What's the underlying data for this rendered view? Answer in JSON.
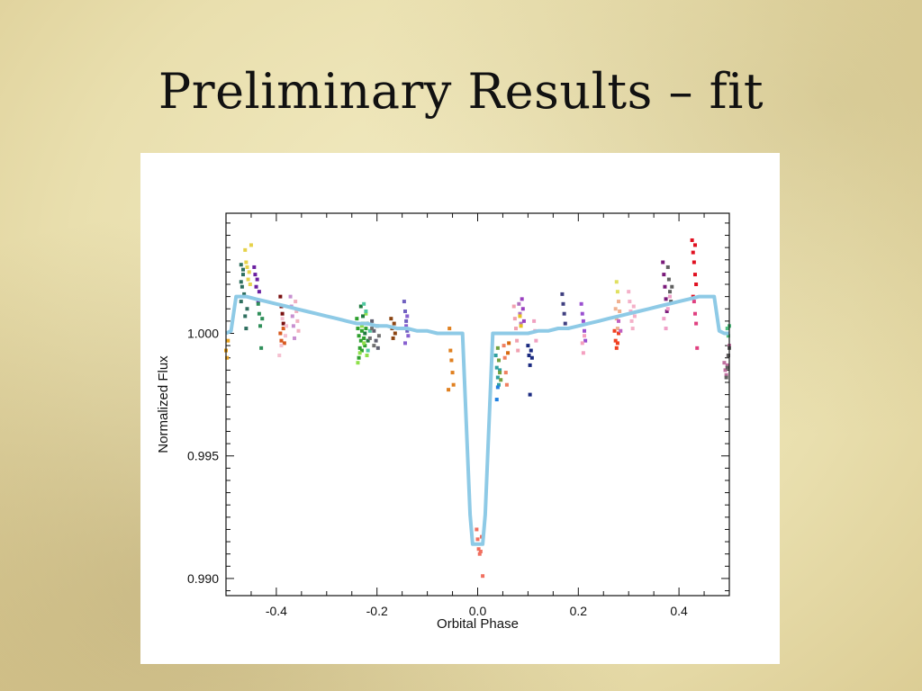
{
  "slide": {
    "title": "Preliminary Results – fit"
  },
  "chart_data": {
    "type": "scatter",
    "title": "",
    "xlabel": "Orbital Phase",
    "ylabel": "Normalized Flux",
    "xlim": [
      -0.5,
      0.5
    ],
    "ylim": [
      0.9893,
      1.0049
    ],
    "x_ticks": [
      -0.4,
      -0.2,
      0.0,
      0.2,
      0.4
    ],
    "x_tick_labels": [
      "-0.4",
      "-0.2",
      "0.0",
      "0.2",
      "0.4"
    ],
    "y_ticks": [
      0.99,
      0.995,
      1.0
    ],
    "y_tick_labels": [
      "0.990",
      "0.995",
      "1.000"
    ],
    "grid": false,
    "legend": "none",
    "fit_color": "#8ecae6",
    "model_fit": {
      "x": [
        -0.5,
        -0.49,
        -0.48,
        -0.46,
        -0.44,
        -0.42,
        -0.4,
        -0.38,
        -0.36,
        -0.34,
        -0.32,
        -0.3,
        -0.28,
        -0.26,
        -0.24,
        -0.22,
        -0.2,
        -0.18,
        -0.16,
        -0.14,
        -0.12,
        -0.1,
        -0.08,
        -0.06,
        -0.04,
        -0.03,
        -0.015,
        -0.01,
        0.0,
        0.01,
        0.015,
        0.03,
        0.04,
        0.06,
        0.08,
        0.1,
        0.12,
        0.14,
        0.16,
        0.18,
        0.2,
        0.22,
        0.24,
        0.26,
        0.28,
        0.3,
        0.32,
        0.34,
        0.36,
        0.38,
        0.4,
        0.42,
        0.44,
        0.46,
        0.47,
        0.48,
        0.49,
        0.5
      ],
      "y": [
        1.0,
        1.0001,
        1.0015,
        1.0015,
        1.0014,
        1.0013,
        1.0012,
        1.0011,
        1.001,
        1.0009,
        1.0008,
        1.0007,
        1.0006,
        1.0005,
        1.0004,
        1.0004,
        1.0003,
        1.0003,
        1.0002,
        1.0002,
        1.0001,
        1.0001,
        1.0,
        1.0,
        1.0,
        1.0,
        0.9926,
        0.9914,
        0.9914,
        0.9914,
        0.9926,
        1.0,
        1.0,
        1.0,
        1.0,
        1.0,
        1.0001,
        1.0001,
        1.0002,
        1.0002,
        1.0003,
        1.0004,
        1.0005,
        1.0006,
        1.0007,
        1.0008,
        1.0009,
        1.001,
        1.0011,
        1.0012,
        1.0013,
        1.0014,
        1.0015,
        1.0015,
        1.0015,
        1.0001,
        1.0,
        1.0
      ]
    },
    "series": [
      {
        "color": "#2f6f5f",
        "x": [
          -0.47,
          -0.47,
          -0.468,
          -0.466,
          -0.464,
          -0.462,
          -0.46,
          -0.458,
          -0.47,
          -0.466
        ],
        "y": [
          1.0028,
          1.0021,
          1.0019,
          1.0024,
          1.0016,
          1.0007,
          1.0002,
          1.001,
          1.0013,
          1.0026
        ]
      },
      {
        "color": "#e6d24a",
        "x": [
          -0.462,
          -0.46,
          -0.458,
          -0.456,
          -0.454,
          -0.452,
          -0.45
        ],
        "y": [
          1.0034,
          1.0029,
          1.0027,
          1.0022,
          1.0025,
          1.002,
          1.0036
        ]
      },
      {
        "color": "#6a1fa0",
        "x": [
          -0.444,
          -0.442,
          -0.44,
          -0.438,
          -0.436,
          -0.434
        ],
        "y": [
          1.0027,
          1.0024,
          1.0019,
          1.0022,
          1.0013,
          1.0017
        ]
      },
      {
        "color": "#2f8f5a",
        "x": [
          -0.436,
          -0.434,
          -0.432,
          -0.43,
          -0.428
        ],
        "y": [
          1.0012,
          1.0008,
          1.0003,
          0.9994,
          1.0006
        ]
      },
      {
        "color": "#e6a020",
        "x": [
          -0.5,
          -0.498,
          -0.496
        ],
        "y": [
          0.9993,
          0.999,
          0.9997
        ]
      },
      {
        "color": "#7a1010",
        "x": [
          -0.392,
          -0.39,
          -0.388,
          -0.386
        ],
        "y": [
          1.0015,
          1.0011,
          1.0008,
          1.0004
        ]
      },
      {
        "color": "#d85a20",
        "x": [
          -0.392,
          -0.39,
          -0.386,
          -0.384
        ],
        "y": [
          1.0,
          0.9997,
          1.0002,
          0.9996
        ]
      },
      {
        "color": "#f5c0d0",
        "x": [
          -0.394,
          -0.39,
          -0.388,
          -0.382,
          -0.38
        ],
        "y": [
          0.9991,
          0.9995,
          1.0006,
          0.9999,
          1.0003
        ]
      },
      {
        "color": "#c890d0",
        "x": [
          -0.372,
          -0.37,
          -0.368,
          -0.366,
          -0.364
        ],
        "y": [
          1.0015,
          1.0011,
          1.0007,
          1.0003,
          0.9998
        ]
      },
      {
        "color": "#f0b0c0",
        "x": [
          -0.362,
          -0.36,
          -0.358,
          -0.356
        ],
        "y": [
          1.0013,
          1.0009,
          1.0005,
          1.0001
        ]
      },
      {
        "color": "#2ea02e",
        "x": [
          -0.24,
          -0.238,
          -0.236,
          -0.234,
          -0.232,
          -0.23,
          -0.228,
          -0.226,
          -0.224,
          -0.222,
          -0.236,
          -0.23
        ],
        "y": [
          1.0006,
          1.0002,
          0.9999,
          0.9994,
          0.9997,
          1.0001,
          1.0004,
          0.9998,
          0.9995,
          1.0002,
          0.999,
          0.9993
        ]
      },
      {
        "color": "#8ee04a",
        "x": [
          -0.238,
          -0.234,
          -0.23,
          -0.226,
          -0.222,
          -0.22
        ],
        "y": [
          0.9988,
          0.9992,
          1.0003,
          0.9996,
          1.0008,
          0.9991
        ]
      },
      {
        "color": "#1e7a3e",
        "x": [
          -0.232,
          -0.228,
          -0.224,
          -0.22,
          -0.218
        ],
        "y": [
          1.0011,
          1.0007,
          1.0,
          1.0004,
          0.9997
        ]
      },
      {
        "color": "#50c8a0",
        "x": [
          -0.226,
          -0.222,
          -0.218,
          -0.214
        ],
        "y": [
          1.0012,
          1.0009,
          0.9993,
          1.0001
        ]
      },
      {
        "color": "#606070",
        "x": [
          -0.21,
          -0.206,
          -0.202,
          -0.198
        ],
        "y": [
          1.0005,
          1.0001,
          0.9997,
          0.9994
        ]
      },
      {
        "color": "#707070",
        "x": [
          -0.214,
          -0.21,
          -0.206,
          -0.2,
          -0.196
        ],
        "y": [
          0.9998,
          1.0002,
          0.9995,
          1.0003,
          0.9999
        ]
      },
      {
        "color": "#8b4513",
        "x": [
          -0.172,
          -0.17,
          -0.168,
          -0.166,
          -0.164
        ],
        "y": [
          1.0006,
          1.0002,
          0.9998,
          1.0004,
          1.0
        ]
      },
      {
        "color": "#7060c0",
        "x": [
          -0.146,
          -0.144,
          -0.142,
          -0.14
        ],
        "y": [
          1.0013,
          1.0009,
          1.0005,
          1.0001
        ]
      },
      {
        "color": "#8860d0",
        "x": [
          -0.144,
          -0.142,
          -0.14,
          -0.138
        ],
        "y": [
          0.9996,
          1.0003,
          1.0007,
          0.9999
        ]
      },
      {
        "color": "#e08020",
        "x": [
          -0.056,
          -0.054,
          -0.052,
          -0.05,
          -0.048,
          -0.058
        ],
        "y": [
          1.0002,
          0.9993,
          0.9989,
          0.9984,
          0.9979,
          0.9977
        ]
      },
      {
        "color": "#f07060",
        "x": [
          -0.002,
          0.0,
          0.002,
          0.004,
          0.006,
          0.008,
          0.01
        ],
        "y": [
          0.992,
          0.9916,
          0.9912,
          0.991,
          0.9911,
          0.9917,
          0.9901
        ]
      },
      {
        "color": "#30a0a0",
        "x": [
          0.036,
          0.038,
          0.04,
          0.042,
          0.044
        ],
        "y": [
          0.9991,
          0.9986,
          0.9982,
          0.9979,
          0.9985
        ]
      },
      {
        "color": "#70a040",
        "x": [
          0.04,
          0.042,
          0.044,
          0.046
        ],
        "y": [
          0.9994,
          0.9989,
          0.9984,
          0.9981
        ]
      },
      {
        "color": "#2080e0",
        "x": [
          0.038,
          0.04
        ],
        "y": [
          0.9973,
          0.9978
        ]
      },
      {
        "color": "#f08060",
        "x": [
          0.052,
          0.054,
          0.056,
          0.058
        ],
        "y": [
          0.9995,
          0.999,
          0.9984,
          0.9979
        ]
      },
      {
        "color": "#d86a10",
        "x": [
          0.06,
          0.062,
          0.064
        ],
        "y": [
          0.9992,
          0.9996,
          1.0
        ]
      },
      {
        "color": "#f0a0b0",
        "x": [
          0.072,
          0.074,
          0.076,
          0.078,
          0.08
        ],
        "y": [
          1.0011,
          1.0006,
          1.0002,
          0.9997,
          0.9993
        ]
      },
      {
        "color": "#b070c0",
        "x": [
          0.082,
          0.084,
          0.086
        ],
        "y": [
          1.0012,
          1.0008,
          1.0004
        ]
      },
      {
        "color": "#9a40c0",
        "x": [
          0.088,
          0.09,
          0.092
        ],
        "y": [
          1.0014,
          1.001,
          1.0005
        ]
      },
      {
        "color": "#e8c020",
        "x": [
          0.084,
          0.086
        ],
        "y": [
          1.0007,
          1.0003
        ]
      },
      {
        "color": "#1a2a80",
        "x": [
          0.1,
          0.102,
          0.104,
          0.106,
          0.108,
          0.104
        ],
        "y": [
          0.9995,
          0.9991,
          0.9987,
          0.9993,
          0.999,
          0.9975
        ]
      },
      {
        "color": "#f0a0c0",
        "x": [
          0.112,
          0.114,
          0.116
        ],
        "y": [
          1.0005,
          1.0001,
          0.9997
        ]
      },
      {
        "color": "#404080",
        "x": [
          0.168,
          0.17,
          0.172,
          0.174
        ],
        "y": [
          1.0016,
          1.0012,
          1.0008,
          1.0004
        ]
      },
      {
        "color": "#9a50d0",
        "x": [
          0.206,
          0.208,
          0.21,
          0.212,
          0.214
        ],
        "y": [
          1.0012,
          1.0008,
          1.0005,
          1.0001,
          0.9997
        ]
      },
      {
        "color": "#f4a0c0",
        "x": [
          0.208,
          0.21,
          0.212
        ],
        "y": [
          0.9996,
          0.9992,
          0.9999
        ]
      },
      {
        "color": "#f04020",
        "x": [
          0.272,
          0.274,
          0.276,
          0.278,
          0.28
        ],
        "y": [
          1.0001,
          0.9997,
          0.9994,
          0.9996,
          1.0
        ]
      },
      {
        "color": "#f0b090",
        "x": [
          0.274,
          0.276,
          0.278,
          0.28,
          0.282
        ],
        "y": [
          1.001,
          1.0006,
          1.0002,
          1.0013,
          1.0009
        ]
      },
      {
        "color": "#e0e060",
        "x": [
          0.276,
          0.278
        ],
        "y": [
          1.0021,
          1.0017
        ]
      },
      {
        "color": "#c060c0",
        "x": [
          0.28,
          0.284
        ],
        "y": [
          1.0005,
          1.0001
        ]
      },
      {
        "color": "#f4b0c8",
        "x": [
          0.3,
          0.302,
          0.304,
          0.306,
          0.308,
          0.31,
          0.312
        ],
        "y": [
          1.0017,
          1.0013,
          1.0009,
          1.0005,
          1.0002,
          1.0011,
          1.0007
        ]
      },
      {
        "color": "#7a1a7a",
        "x": [
          0.368,
          0.37,
          0.372,
          0.374,
          0.376
        ],
        "y": [
          1.0029,
          1.0024,
          1.0019,
          1.0014,
          1.0009
        ]
      },
      {
        "color": "#606060",
        "x": [
          0.378,
          0.38,
          0.382,
          0.384,
          0.386
        ],
        "y": [
          1.0027,
          1.0022,
          1.0017,
          1.0013,
          1.0019
        ]
      },
      {
        "color": "#f0a0c8",
        "x": [
          0.37,
          0.374,
          0.378,
          0.382
        ],
        "y": [
          1.0006,
          1.0002,
          1.001,
          1.0015
        ]
      },
      {
        "color": "#e01020",
        "x": [
          0.426,
          0.428,
          0.43,
          0.432,
          0.434,
          0.428,
          0.432
        ],
        "y": [
          1.0038,
          1.0033,
          1.0029,
          1.0024,
          1.002,
          1.0015,
          1.0036
        ]
      },
      {
        "color": "#e04080",
        "x": [
          0.43,
          0.432,
          0.434,
          0.436
        ],
        "y": [
          1.0013,
          1.0008,
          1.0004,
          0.9994
        ]
      },
      {
        "color": "#c070a0",
        "x": [
          0.49,
          0.492,
          0.494,
          0.496,
          0.498,
          0.5
        ],
        "y": [
          0.9988,
          0.9985,
          0.9983,
          0.9987,
          0.9991,
          0.9995
        ]
      },
      {
        "color": "#606060",
        "x": [
          0.494,
          0.496,
          0.498,
          0.5
        ],
        "y": [
          0.9982,
          0.9986,
          0.9991,
          0.9994
        ]
      },
      {
        "color": "#50c080",
        "x": [
          0.496,
          0.498,
          0.5
        ],
        "y": [
          1.0002,
          0.9999,
          1.0003
        ]
      }
    ]
  }
}
